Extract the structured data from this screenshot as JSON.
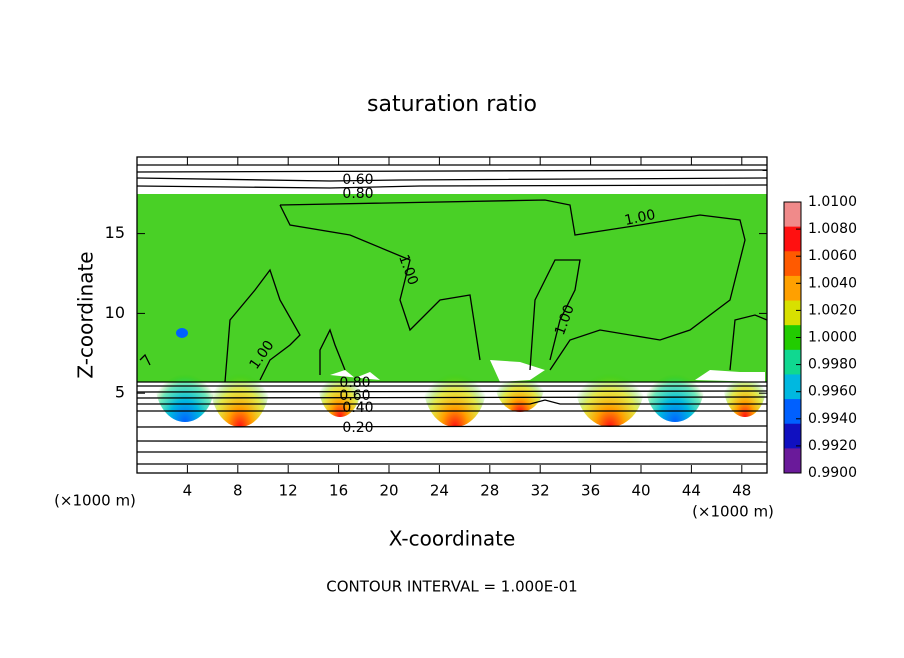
{
  "chart_data": {
    "type": "contour",
    "title": "saturation ratio",
    "x_label": "X-coordinate",
    "y_label": "Z-coordinate",
    "x_unit": "(×1000 m)",
    "x_unit_right": "(×1000 m)",
    "footer": "CONTOUR INTERVAL = 1.000E-01",
    "xlim": [
      0,
      50
    ],
    "xticks": [
      4,
      8,
      12,
      16,
      20,
      24,
      28,
      32,
      36,
      40,
      44,
      48
    ],
    "ylim": [
      0,
      19.8
    ],
    "yticks": [
      5,
      10,
      15
    ],
    "contour_labels": [
      "0.60",
      "0.80",
      "1.00",
      "1.00",
      "1.00",
      "1.00",
      "0.80",
      "0.60",
      "0.40",
      "0.20"
    ],
    "colorbar_lim": [
      0.99,
      1.01
    ],
    "colorbar_ticks": [
      {
        "value": 1.01,
        "label": "1.0100"
      },
      {
        "value": 1.008,
        "label": "1.0080"
      },
      {
        "value": 1.006,
        "label": "1.0060"
      },
      {
        "value": 1.004,
        "label": "1.0040"
      },
      {
        "value": 1.002,
        "label": "1.0020"
      },
      {
        "value": 1.0,
        "label": "1.0000"
      },
      {
        "value": 0.998,
        "label": "0.9980"
      },
      {
        "value": 0.996,
        "label": "0.9960"
      },
      {
        "value": 0.994,
        "label": "0.9940"
      },
      {
        "value": 0.992,
        "label": "0.9920"
      },
      {
        "value": 0.99,
        "label": "0.9900"
      }
    ],
    "colorbar_colors": [
      "#f08a8a",
      "#ff1010",
      "#ff5a00",
      "#ffa000",
      "#d8e000",
      "#22cc00",
      "#10d890",
      "#00b8e0",
      "#0060ff",
      "#1010c0",
      "#6a1a9a"
    ]
  }
}
